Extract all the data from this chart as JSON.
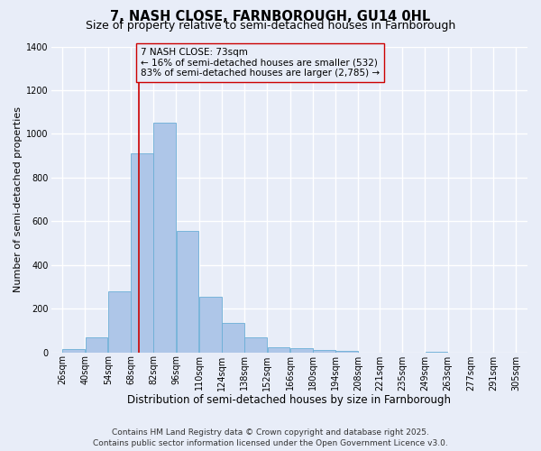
{
  "title": "7, NASH CLOSE, FARNBOROUGH, GU14 0HL",
  "subtitle": "Size of property relative to semi-detached houses in Farnborough",
  "xlabel": "Distribution of semi-detached houses by size in Farnborough",
  "ylabel": "Number of semi-detached properties",
  "bin_labels": [
    "26sqm",
    "40sqm",
    "54sqm",
    "68sqm",
    "82sqm",
    "96sqm",
    "110sqm",
    "124sqm",
    "138sqm",
    "152sqm",
    "166sqm",
    "180sqm",
    "194sqm",
    "208sqm",
    "221sqm",
    "235sqm",
    "249sqm",
    "263sqm",
    "277sqm",
    "291sqm",
    "305sqm"
  ],
  "bin_lefts": [
    26,
    40,
    54,
    68,
    82,
    96,
    110,
    124,
    138,
    152,
    166,
    180,
    194,
    208,
    221,
    235,
    249,
    263,
    277,
    291
  ],
  "bin_width": 14,
  "bar_values": [
    15,
    70,
    280,
    910,
    1050,
    555,
    255,
    135,
    70,
    25,
    20,
    10,
    5,
    0,
    0,
    0,
    3,
    0,
    0,
    0
  ],
  "bar_color": "#aec6e8",
  "bar_edgecolor": "#6baed6",
  "vline_x": 73,
  "vline_color": "#cc0000",
  "annotation_text": "7 NASH CLOSE: 73sqm\n← 16% of semi-detached houses are smaller (532)\n83% of semi-detached houses are larger (2,785) →",
  "annotation_box_edgecolor": "#cc0000",
  "ylim": [
    0,
    1400
  ],
  "yticks": [
    0,
    200,
    400,
    600,
    800,
    1000,
    1200,
    1400
  ],
  "xlim_left": 19,
  "xlim_right": 312,
  "background_color": "#e8edf8",
  "grid_color": "#ffffff",
  "footer_line1": "Contains HM Land Registry data © Crown copyright and database right 2025.",
  "footer_line2": "Contains public sector information licensed under the Open Government Licence v3.0.",
  "title_fontsize": 10.5,
  "subtitle_fontsize": 9,
  "xlabel_fontsize": 8.5,
  "ylabel_fontsize": 8,
  "annotation_fontsize": 7.5,
  "tick_fontsize": 7,
  "footer_fontsize": 6.5
}
